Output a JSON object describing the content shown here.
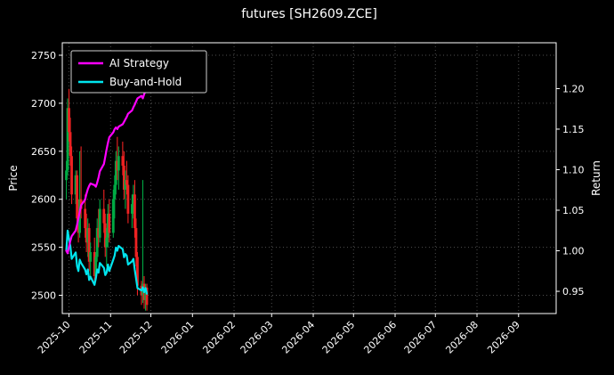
{
  "page": {
    "background": "#000000"
  },
  "chart_data": {
    "type": "candlestick+line",
    "title": "futures [SH2609.ZCE]",
    "ylabel_left": "Price",
    "ylabel_right": "Return",
    "grid": true,
    "legend_position": "upper-left",
    "x_domain": [
      "2025-09-26",
      "2026-09-29"
    ],
    "x_ticks": [
      "2025-10",
      "2025-11",
      "2025-12",
      "2026-01",
      "2026-02",
      "2026-03",
      "2026-04",
      "2026-05",
      "2026-06",
      "2026-07",
      "2026-08",
      "2026-09"
    ],
    "price_ticks": [
      2500,
      2550,
      2600,
      2650,
      2700,
      2750
    ],
    "price_lim": [
      2481,
      2763
    ],
    "return_ticks": [
      0.95,
      1.0,
      1.05,
      1.1,
      1.15,
      1.2
    ],
    "return_lim": [
      0.9226,
      1.2565
    ],
    "colors": {
      "background": "#000000",
      "text": "#ffffff",
      "grid": "#4f4f4f",
      "spine": "#ffffff",
      "candle_up": "#00aa44",
      "candle_down": "#ee2222",
      "ai": "#ff00ff",
      "bh": "#00e5ee"
    },
    "dates": [
      "2025-09-29",
      "2025-09-30",
      "2025-10-01",
      "2025-10-02",
      "2025-10-03",
      "2025-10-06",
      "2025-10-07",
      "2025-10-08",
      "2025-10-09",
      "2025-10-10",
      "2025-10-13",
      "2025-10-14",
      "2025-10-15",
      "2025-10-16",
      "2025-10-17",
      "2025-10-20",
      "2025-10-21",
      "2025-10-22",
      "2025-10-23",
      "2025-10-24",
      "2025-10-27",
      "2025-10-28",
      "2025-10-29",
      "2025-10-30",
      "2025-10-31",
      "2025-11-03",
      "2025-11-04",
      "2025-11-05",
      "2025-11-06",
      "2025-11-07",
      "2025-11-10",
      "2025-11-11",
      "2025-11-12",
      "2025-11-13",
      "2025-11-14",
      "2025-11-17",
      "2025-11-18",
      "2025-11-19",
      "2025-11-20",
      "2025-11-21",
      "2025-11-24",
      "2025-11-25",
      "2025-11-26",
      "2025-11-27",
      "2025-11-28"
    ],
    "ohlc": [
      [
        2620,
        2640,
        2600,
        2630
      ],
      [
        2630,
        2705,
        2625,
        2695
      ],
      [
        2695,
        2715,
        2660,
        2670
      ],
      [
        2670,
        2685,
        2635,
        2645
      ],
      [
        2645,
        2655,
        2595,
        2605
      ],
      [
        2605,
        2630,
        2595,
        2625
      ],
      [
        2625,
        2630,
        2570,
        2580
      ],
      [
        2580,
        2600,
        2555,
        2565
      ],
      [
        2565,
        2650,
        2560,
        2600
      ],
      [
        2600,
        2655,
        2580,
        2590
      ],
      [
        2590,
        2605,
        2560,
        2570
      ],
      [
        2570,
        2585,
        2545,
        2555
      ],
      [
        2555,
        2580,
        2540,
        2570
      ],
      [
        2570,
        2575,
        2525,
        2535
      ],
      [
        2535,
        2555,
        2520,
        2545
      ],
      [
        2545,
        2560,
        2510,
        2520
      ],
      [
        2520,
        2545,
        2515,
        2540
      ],
      [
        2540,
        2580,
        2535,
        2570
      ],
      [
        2570,
        2590,
        2550,
        2560
      ],
      [
        2560,
        2600,
        2555,
        2590
      ],
      [
        2590,
        2610,
        2565,
        2575
      ],
      [
        2575,
        2585,
        2540,
        2550
      ],
      [
        2550,
        2570,
        2530,
        2560
      ],
      [
        2560,
        2595,
        2550,
        2585
      ],
      [
        2585,
        2600,
        2555,
        2565
      ],
      [
        2565,
        2610,
        2560,
        2600
      ],
      [
        2600,
        2625,
        2580,
        2615
      ],
      [
        2615,
        2650,
        2605,
        2640
      ],
      [
        2640,
        2665,
        2620,
        2630
      ],
      [
        2630,
        2655,
        2610,
        2645
      ],
      [
        2645,
        2660,
        2625,
        2635
      ],
      [
        2635,
        2650,
        2600,
        2610
      ],
      [
        2610,
        2630,
        2590,
        2620
      ],
      [
        2620,
        2640,
        2605,
        2615
      ],
      [
        2615,
        2625,
        2575,
        2585
      ],
      [
        2585,
        2605,
        2570,
        2595
      ],
      [
        2595,
        2615,
        2580,
        2605
      ],
      [
        2605,
        2620,
        2560,
        2570
      ],
      [
        2570,
        2580,
        2530,
        2540
      ],
      [
        2540,
        2545,
        2500,
        2510
      ],
      [
        2510,
        2515,
        2490,
        2500
      ],
      [
        2500,
        2620,
        2492,
        2512
      ],
      [
        2512,
        2520,
        2486,
        2495
      ],
      [
        2495,
        2512,
        2484,
        2508
      ],
      [
        2508,
        2512,
        2484,
        2490
      ]
    ],
    "series": [
      {
        "name": "AI Strategy",
        "axis": "return",
        "color": "#ff00ff",
        "values": [
          1.0,
          0.997,
          1.005,
          1.012,
          1.018,
          1.025,
          1.032,
          1.04,
          1.048,
          1.056,
          1.063,
          1.07,
          1.076,
          1.08,
          1.083,
          1.081,
          1.079,
          1.084,
          1.09,
          1.098,
          1.107,
          1.116,
          1.125,
          1.133,
          1.14,
          1.146,
          1.15,
          1.152,
          1.15,
          1.153,
          1.156,
          1.159,
          1.162,
          1.165,
          1.169,
          1.173,
          1.177,
          1.18,
          1.184,
          1.188,
          1.191,
          1.188,
          1.193,
          1.197,
          1.201
        ]
      },
      {
        "name": "Buy-and-Hold",
        "axis": "return",
        "color": "#00e5ee",
        "values": [
          1.0,
          1.025,
          1.015,
          1.006,
          0.99,
          0.998,
          0.981,
          0.975,
          0.989,
          0.985,
          0.977,
          0.971,
          0.977,
          0.964,
          0.968,
          0.958,
          0.966,
          0.977,
          0.973,
          0.985,
          0.979,
          0.97,
          0.973,
          0.983,
          0.975,
          0.989,
          0.994,
          1.004,
          1.0,
          1.006,
          1.002,
          0.992,
          0.996,
          0.994,
          0.983,
          0.987,
          0.99,
          0.977,
          0.966,
          0.954,
          0.951,
          0.955,
          0.949,
          0.954,
          0.947
        ]
      }
    ]
  }
}
